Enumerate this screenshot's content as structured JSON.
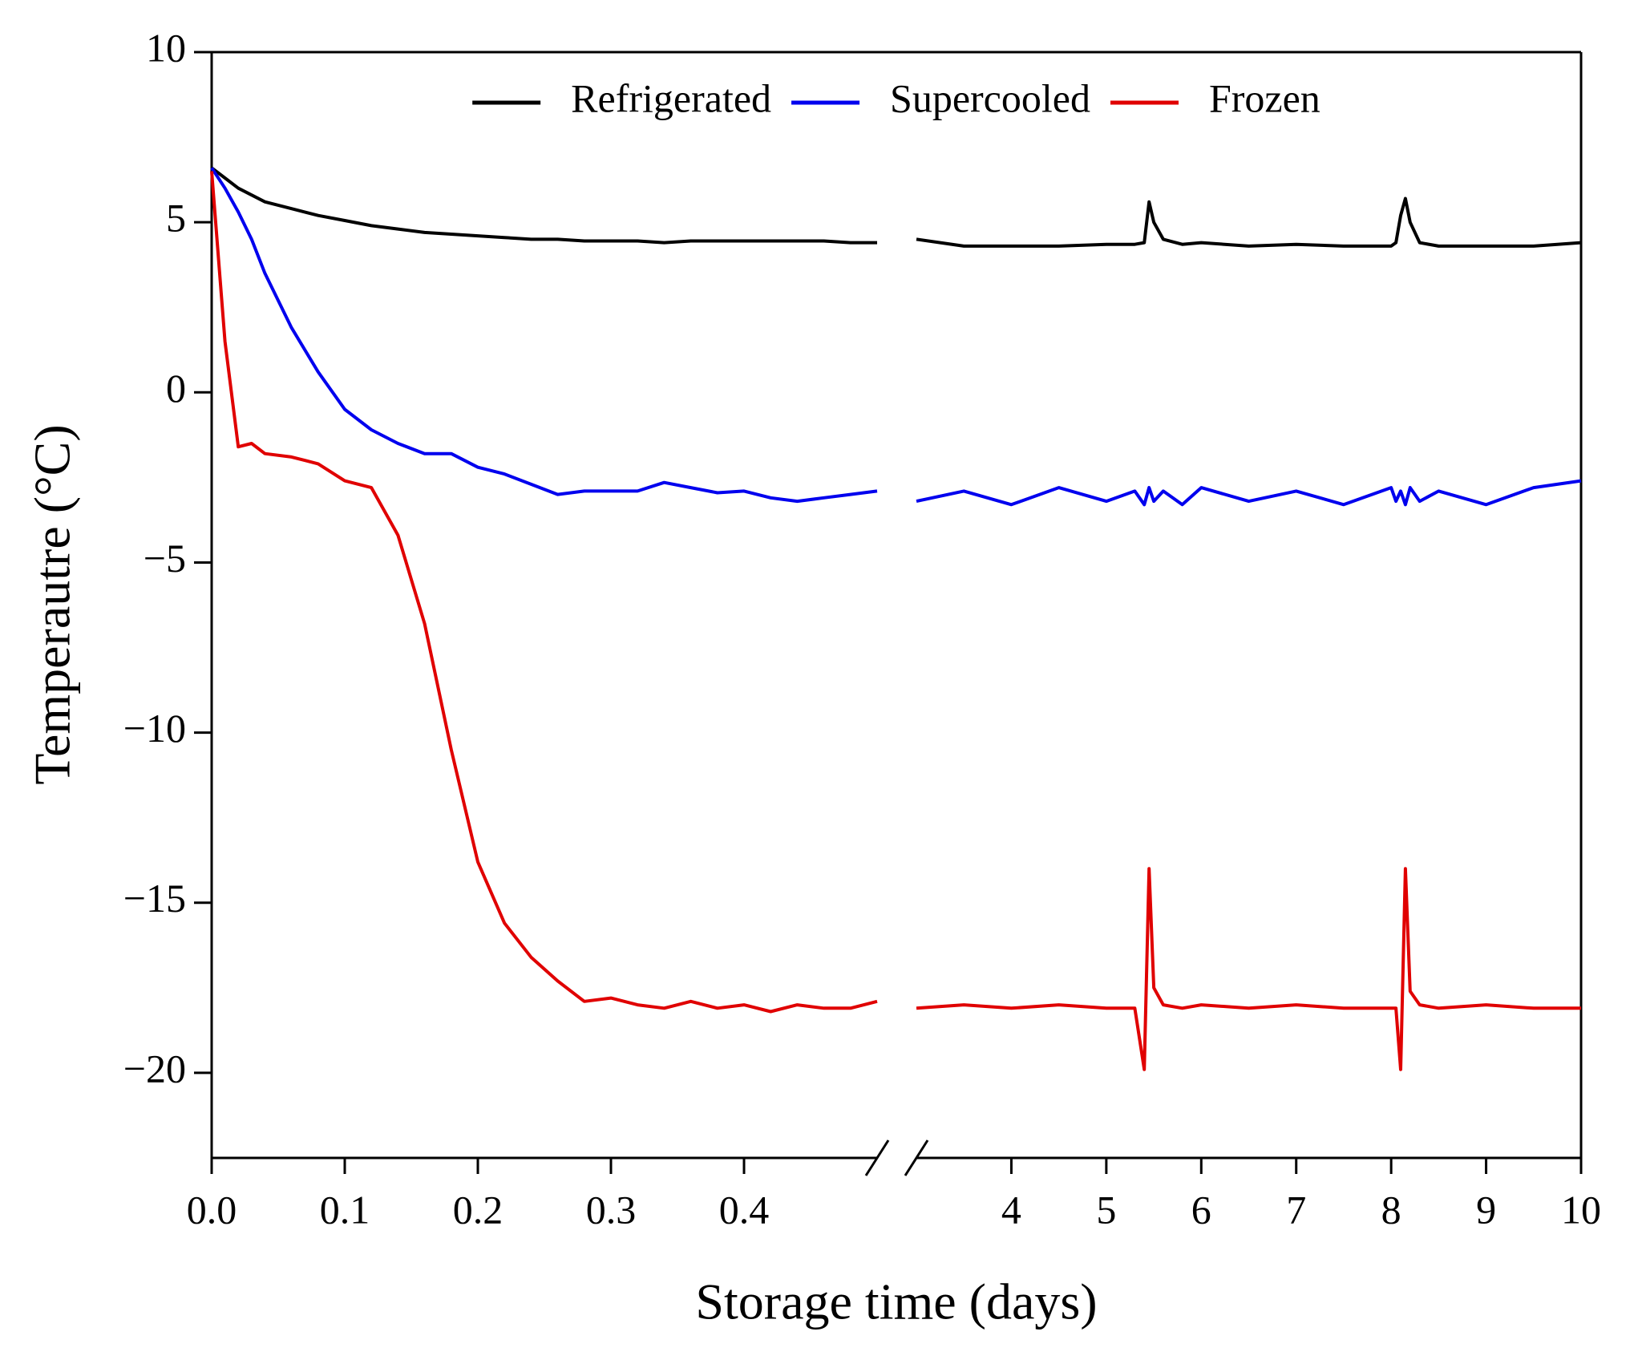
{
  "chart_data": {
    "type": "line",
    "xlabel": "Storage time (days)",
    "ylabel": "Temperautre (°C)",
    "legend": "upper center",
    "x_segments": [
      {
        "xlim": [
          0,
          0.5
        ],
        "xticks": [
          {
            "value": 0,
            "label": "0.0"
          },
          0.1,
          0.2,
          0.3,
          0.4
        ]
      },
      {
        "xlim": [
          3,
          10
        ],
        "xticks": [
          4,
          5,
          6,
          7,
          8,
          9,
          10
        ]
      }
    ],
    "ylim": [
      -22.5,
      10
    ],
    "yticks": [
      {
        "value": -20,
        "label": "−20"
      },
      {
        "value": -15,
        "label": "−15"
      },
      {
        "value": -10,
        "label": "−10"
      },
      {
        "value": -5,
        "label": "−5"
      },
      0,
      5,
      10
    ],
    "x": [
      0,
      0.01,
      0.02,
      0.03,
      0.04,
      0.06,
      0.08,
      0.1,
      0.12,
      0.14,
      0.16,
      0.18,
      0.2,
      0.22,
      0.24,
      0.26,
      0.28,
      0.3,
      0.32,
      0.34,
      0.36,
      0.38,
      0.4,
      0.42,
      0.44,
      0.46,
      0.48,
      0.5,
      null,
      3,
      3.5,
      4,
      4.5,
      5,
      5.3,
      5.4,
      5.45,
      5.5,
      5.6,
      5.8,
      6,
      6.5,
      7,
      7.5,
      8,
      8.05,
      8.1,
      8.15,
      8.2,
      8.3,
      8.5,
      9,
      9.5,
      10
    ],
    "series": [
      {
        "name": "Refrigerated",
        "color": "#000000",
        "values": [
          6.6,
          6.3,
          6.0,
          5.8,
          5.6,
          5.4,
          5.2,
          5.05,
          4.9,
          4.8,
          4.7,
          4.65,
          4.6,
          4.55,
          4.5,
          4.5,
          4.45,
          4.45,
          4.45,
          4.4,
          4.45,
          4.45,
          4.45,
          4.45,
          4.45,
          4.45,
          4.4,
          4.4,
          null,
          4.5,
          4.3,
          4.3,
          4.3,
          4.35,
          4.35,
          4.4,
          5.6,
          5.0,
          4.5,
          4.35,
          4.4,
          4.3,
          4.35,
          4.3,
          4.3,
          4.4,
          5.2,
          5.7,
          5.0,
          4.4,
          4.3,
          4.3,
          4.3,
          4.4
        ]
      },
      {
        "name": "Supercooled",
        "color": "#0000ee",
        "values": [
          6.6,
          6.0,
          5.3,
          4.5,
          3.5,
          1.9,
          0.6,
          -0.5,
          -1.1,
          -1.5,
          -1.8,
          -1.8,
          -2.2,
          -2.4,
          -2.7,
          -3.0,
          -2.9,
          -2.9,
          -2.9,
          -2.65,
          -2.8,
          -2.95,
          -2.9,
          -3.1,
          -3.2,
          -3.1,
          -3.0,
          -2.9,
          null,
          -3.2,
          -2.9,
          -3.3,
          -2.8,
          -3.2,
          -2.9,
          -3.3,
          -2.8,
          -3.2,
          -2.9,
          -3.3,
          -2.8,
          -3.2,
          -2.9,
          -3.3,
          -2.8,
          -3.2,
          -2.9,
          -3.3,
          -2.8,
          -3.2,
          -2.9,
          -3.3,
          -2.8,
          -2.6
        ]
      },
      {
        "name": "Frozen",
        "color": "#e00000",
        "values": [
          6.5,
          1.5,
          -1.6,
          -1.5,
          -1.8,
          -1.9,
          -2.1,
          -2.6,
          -2.8,
          -4.2,
          -6.8,
          -10.5,
          -13.8,
          -15.6,
          -16.6,
          -17.3,
          -17.9,
          -17.8,
          -18.0,
          -18.1,
          -17.9,
          -18.1,
          -18.0,
          -18.2,
          -18.0,
          -18.1,
          -18.1,
          -17.9,
          null,
          -18.1,
          -18.0,
          -18.1,
          -18.0,
          -18.1,
          -18.1,
          -19.9,
          -14.0,
          -17.5,
          -18.0,
          -18.1,
          -18.0,
          -18.1,
          -18.0,
          -18.1,
          -18.1,
          -18.1,
          -19.9,
          -14.0,
          -17.6,
          -18.0,
          -18.1,
          -18.0,
          -18.1,
          -18.1
        ]
      }
    ]
  }
}
